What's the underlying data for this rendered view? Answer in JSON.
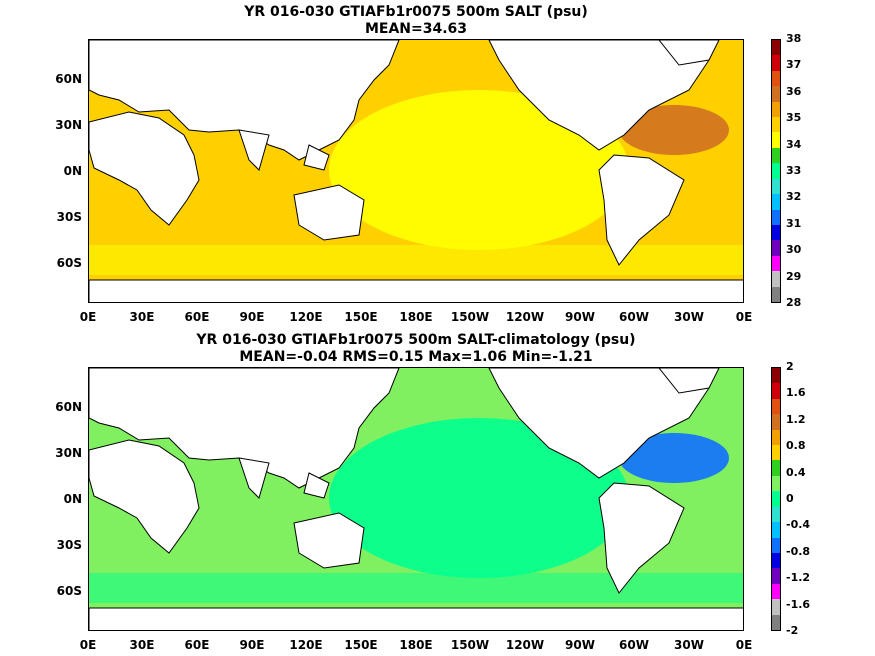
{
  "panels": [
    {
      "title_line1": "YR 016-030 GTIAFb1r0075 500m SALT (psu)",
      "title_line2": "MEAN=34.63",
      "colorbar_labels": [
        "38",
        "37",
        "36",
        "35",
        "34",
        "33",
        "32",
        "31",
        "30",
        "29",
        "28"
      ],
      "colorbar_colors": [
        "#8b0000",
        "#d0000a",
        "#e05010",
        "#d07020",
        "#f0a000",
        "#ffd000",
        "#ffff00",
        "#30d020",
        "#00ff90",
        "#30e0d0",
        "#00c0ff",
        "#1070ff",
        "#0000e0",
        "#7000c0",
        "#ff00ff",
        "#c0c0c0",
        "#808080"
      ],
      "ocean_color": "#ffd000",
      "pacific_color": "#ffff00",
      "atlantic_color": "#d07020"
    },
    {
      "title_line1": "YR 016-030 GTIAFb1r0075 500m SALT-climatology (psu)",
      "title_line2": "MEAN=-0.04   RMS=0.15   Max=1.06   Min=-1.21",
      "colorbar_labels": [
        "2",
        "1.6",
        "1.2",
        "0.8",
        "0.4",
        "0",
        "-0.4",
        "-0.8",
        "-1.2",
        "-1.6",
        "-2"
      ],
      "colorbar_colors": [
        "#8b0000",
        "#d0000a",
        "#e05010",
        "#d07020",
        "#f0a000",
        "#ffd000",
        "#30d020",
        "#80f060",
        "#00ff90",
        "#30e0d0",
        "#00c0ff",
        "#1070ff",
        "#0000e0",
        "#7000c0",
        "#ff00ff",
        "#c0c0c0",
        "#808080"
      ],
      "ocean_color": "#80f060",
      "pacific_color": "#00ff90",
      "atlantic_color": "#1070ff"
    }
  ],
  "y_ticks": [
    "60N",
    "30N",
    "0N",
    "30S",
    "60S"
  ],
  "x_ticks": [
    "0E",
    "30E",
    "60E",
    "90E",
    "120E",
    "150E",
    "180E",
    "150W",
    "120W",
    "90W",
    "60W",
    "30W",
    "0E"
  ]
}
